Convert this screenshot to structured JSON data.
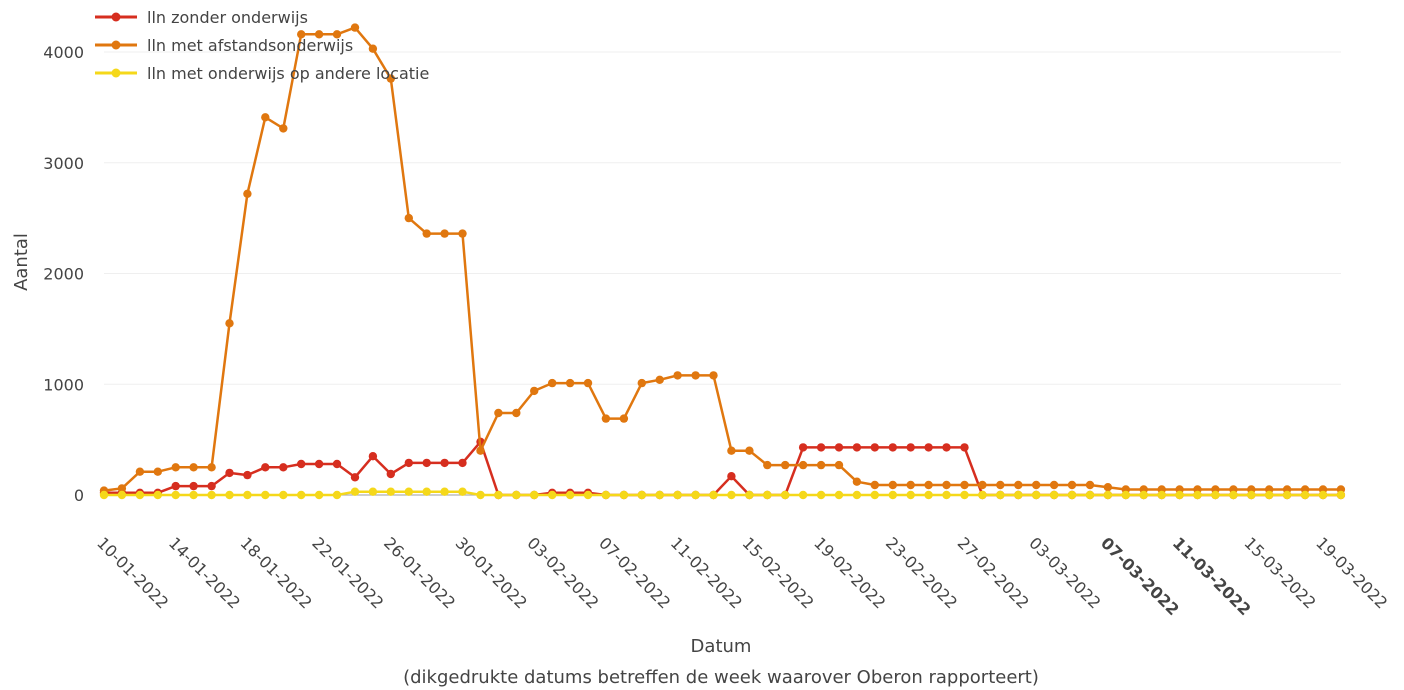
{
  "chart_data": {
    "type": "line",
    "xlabel": "Datum",
    "xlabel_sub": "(dikgedrukte datums betreffen de week waarover Oberon rapporteert)",
    "ylabel": "Aantal",
    "ylim": [
      0,
      4250
    ],
    "y_ticks": [
      "0",
      "1000",
      "2000",
      "3000",
      "4000"
    ],
    "y_tick_values": [
      0,
      1000,
      2000,
      3000,
      4000
    ],
    "x_start": "2022-01-10",
    "x_end": "2022-03-19",
    "x_ticks": [
      {
        "label": "10-01-2022",
        "date": "2022-01-10",
        "bold": false
      },
      {
        "label": "14-01-2022",
        "date": "2022-01-14",
        "bold": false
      },
      {
        "label": "18-01-2022",
        "date": "2022-01-18",
        "bold": false
      },
      {
        "label": "22-01-2022",
        "date": "2022-01-22",
        "bold": false
      },
      {
        "label": "26-01-2022",
        "date": "2022-01-26",
        "bold": false
      },
      {
        "label": "30-01-2022",
        "date": "2022-01-30",
        "bold": false
      },
      {
        "label": "03-02-2022",
        "date": "2022-02-03",
        "bold": false
      },
      {
        "label": "07-02-2022",
        "date": "2022-02-07",
        "bold": false
      },
      {
        "label": "11-02-2022",
        "date": "2022-02-11",
        "bold": false
      },
      {
        "label": "15-02-2022",
        "date": "2022-02-15",
        "bold": false
      },
      {
        "label": "19-02-2022",
        "date": "2022-02-19",
        "bold": false
      },
      {
        "label": "23-02-2022",
        "date": "2022-02-23",
        "bold": false
      },
      {
        "label": "27-02-2022",
        "date": "2022-02-27",
        "bold": false
      },
      {
        "label": "03-03-2022",
        "date": "2022-03-03",
        "bold": false
      },
      {
        "label": "07-03-2022",
        "date": "2022-03-07",
        "bold": true
      },
      {
        "label": "11-03-2022",
        "date": "2022-03-11",
        "bold": true
      },
      {
        "label": "15-03-2022",
        "date": "2022-03-15",
        "bold": false
      },
      {
        "label": "19-03-2022",
        "date": "2022-03-19",
        "bold": false
      }
    ],
    "legend_position": "top-left",
    "grid": true,
    "series": [
      {
        "name": "lln zonder onderwijs",
        "color": "#d62e1f",
        "values": [
          20,
          20,
          20,
          20,
          80,
          80,
          80,
          200,
          180,
          250,
          250,
          280,
          280,
          280,
          160,
          350,
          190,
          290,
          290,
          290,
          290,
          480,
          0,
          0,
          0,
          20,
          20,
          20,
          0,
          0,
          0,
          0,
          0,
          0,
          0,
          170,
          0,
          0,
          0,
          430,
          430,
          430,
          430,
          430,
          430,
          430,
          430,
          430,
          430,
          0,
          0,
          0,
          0,
          0,
          0,
          0,
          0,
          0,
          0,
          0,
          0,
          0,
          0,
          0,
          0,
          0,
          0,
          0,
          0,
          0
        ]
      },
      {
        "name": "lln met afstandsonderwijs",
        "color": "#e0770f",
        "values": [
          40,
          60,
          210,
          210,
          250,
          250,
          250,
          1550,
          2720,
          3410,
          3310,
          4160,
          4160,
          4160,
          4220,
          4030,
          3760,
          2500,
          2360,
          2360,
          2360,
          400,
          740,
          740,
          940,
          1010,
          1010,
          1010,
          690,
          690,
          1010,
          1040,
          1080,
          1080,
          1080,
          400,
          400,
          270,
          270,
          270,
          270,
          270,
          120,
          90,
          90,
          90,
          90,
          90,
          90,
          90,
          90,
          90,
          90,
          90,
          90,
          90,
          70,
          50,
          50,
          50,
          50,
          50,
          50,
          50,
          50,
          50,
          50,
          50,
          50,
          50
        ]
      },
      {
        "name": "lln met onderwijs op andere locatie",
        "color": "#f5d81a",
        "values": [
          0,
          0,
          0,
          0,
          0,
          0,
          0,
          0,
          0,
          0,
          0,
          0,
          0,
          0,
          30,
          30,
          30,
          30,
          30,
          30,
          30,
          0,
          0,
          0,
          0,
          0,
          0,
          0,
          0,
          0,
          0,
          0,
          0,
          0,
          0,
          0,
          0,
          0,
          0,
          0,
          0,
          0,
          0,
          0,
          0,
          0,
          0,
          0,
          0,
          0,
          0,
          0,
          0,
          0,
          0,
          0,
          0,
          0,
          0,
          0,
          0,
          0,
          0,
          0,
          0,
          0,
          0,
          0,
          0,
          0
        ]
      }
    ]
  }
}
